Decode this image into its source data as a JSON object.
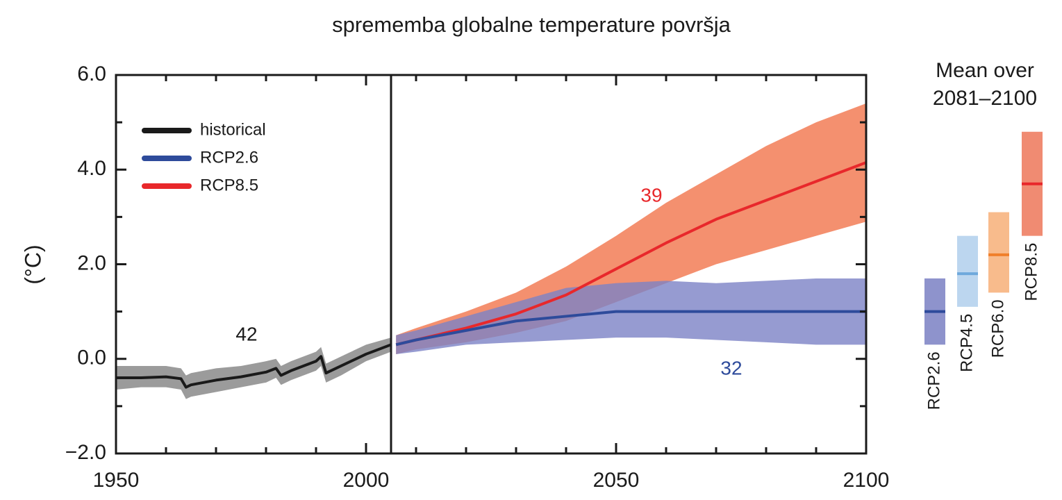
{
  "chart_data": {
    "type": "line",
    "title": "sprememba globalne temperature površja",
    "y_label": "(°C)",
    "xlim": [
      1950,
      2100
    ],
    "ylim": [
      -2,
      6
    ],
    "xticks": [
      1950,
      2000,
      2050,
      2100
    ],
    "xminorticks": [
      1960,
      1970,
      1980,
      1990,
      2010,
      2020,
      2030,
      2040,
      2060,
      2070,
      2080,
      2090
    ],
    "yticks": [
      {
        "value": -2,
        "label": "−2.0"
      },
      {
        "value": 0,
        "label": "0.0"
      },
      {
        "value": 2,
        "label": "2.0"
      },
      {
        "value": 4,
        "label": "4.0"
      },
      {
        "value": 6,
        "label": "6.0"
      }
    ],
    "yminorticks": [
      -1,
      1,
      3,
      5
    ],
    "vline": 2005,
    "legend": "upper left",
    "series": [
      {
        "name": "historical",
        "color": "#1a1a1a",
        "band_color": "#9b9b9b",
        "x": [
          1950,
          1955,
          1960,
          1963,
          1964,
          1965,
          1970,
          1975,
          1980,
          1982,
          1983,
          1985,
          1990,
          1991,
          1992,
          1995,
          2000,
          2005
        ],
        "values": [
          -0.4,
          -0.4,
          -0.38,
          -0.42,
          -0.6,
          -0.55,
          -0.45,
          -0.38,
          -0.28,
          -0.2,
          -0.35,
          -0.25,
          -0.05,
          0.05,
          -0.3,
          -0.15,
          0.1,
          0.3
        ],
        "lower": [
          -0.65,
          -0.6,
          -0.6,
          -0.65,
          -0.85,
          -0.8,
          -0.7,
          -0.6,
          -0.5,
          -0.4,
          -0.55,
          -0.45,
          -0.25,
          -0.15,
          -0.5,
          -0.35,
          -0.05,
          0.15
        ],
        "upper": [
          -0.15,
          -0.15,
          -0.15,
          -0.2,
          -0.35,
          -0.3,
          -0.2,
          -0.15,
          -0.05,
          0.0,
          -0.15,
          -0.05,
          0.15,
          0.25,
          -0.1,
          0.05,
          0.3,
          0.45
        ]
      },
      {
        "name": "RCP8.5",
        "color": "#e8282b",
        "band_color": "#f4906f",
        "x": [
          2006,
          2010,
          2020,
          2030,
          2040,
          2050,
          2060,
          2070,
          2080,
          2090,
          2100
        ],
        "values": [
          0.3,
          0.4,
          0.65,
          0.95,
          1.35,
          1.9,
          2.45,
          2.95,
          3.35,
          3.75,
          4.15
        ],
        "lower": [
          0.1,
          0.2,
          0.35,
          0.55,
          0.8,
          1.2,
          1.6,
          2.0,
          2.3,
          2.6,
          2.9
        ],
        "upper": [
          0.5,
          0.65,
          1.0,
          1.4,
          1.95,
          2.6,
          3.3,
          3.9,
          4.5,
          5.0,
          5.4
        ]
      },
      {
        "name": "RCP2.6",
        "color": "#2e4b9b",
        "band_color": "#7c82c6",
        "x": [
          2006,
          2010,
          2020,
          2030,
          2040,
          2050,
          2060,
          2070,
          2080,
          2090,
          2100
        ],
        "values": [
          0.3,
          0.4,
          0.6,
          0.8,
          0.9,
          1.0,
          1.0,
          1.0,
          1.0,
          1.0,
          1.0
        ],
        "lower": [
          0.1,
          0.15,
          0.3,
          0.35,
          0.4,
          0.45,
          0.45,
          0.4,
          0.35,
          0.3,
          0.3
        ],
        "upper": [
          0.5,
          0.6,
          0.9,
          1.2,
          1.5,
          1.6,
          1.65,
          1.6,
          1.65,
          1.7,
          1.7
        ]
      }
    ],
    "legend_order": [
      0,
      2,
      1
    ],
    "annotations": [
      {
        "text": "42",
        "color": "#1a1a1a"
      },
      {
        "text": "39",
        "color": "#e8282b"
      },
      {
        "text": "32",
        "color": "#2e4b9b"
      }
    ],
    "mean_panel_title": [
      "Mean over",
      "2081–2100"
    ],
    "mean_boxes": [
      {
        "name": "RCP2.6",
        "mean": 1.0,
        "low": 0.3,
        "high": 1.7,
        "color": "#8e93cc",
        "line_color": "#2e4b9b"
      },
      {
        "name": "RCP4.5",
        "mean": 1.8,
        "low": 1.1,
        "high": 2.6,
        "color": "#bcd6ef",
        "line_color": "#6fa9dc"
      },
      {
        "name": "RCP6.0",
        "mean": 2.2,
        "low": 1.4,
        "high": 3.1,
        "color": "#f8bb8c",
        "line_color": "#f07f2a"
      },
      {
        "name": "RCP8.5",
        "mean": 3.7,
        "low": 2.6,
        "high": 4.8,
        "color": "#f08b72",
        "line_color": "#e8282b"
      }
    ]
  }
}
